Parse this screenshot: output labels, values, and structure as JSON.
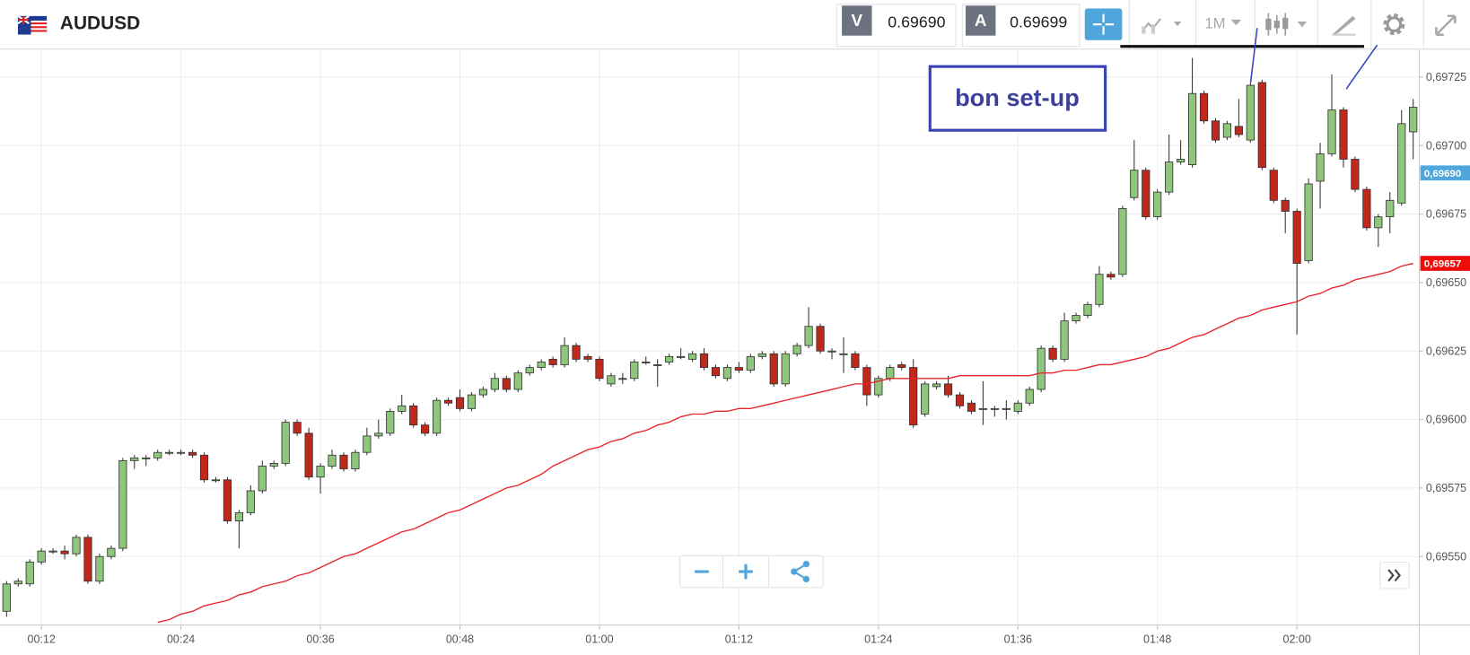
{
  "header": {
    "symbol": "AUDUSD",
    "bid_label": "V",
    "bid": "0.69690",
    "ask_label": "A",
    "ask": "0.69699",
    "timeframe": "1M"
  },
  "chart_data": {
    "type": "candlestick",
    "annotation": "bon set-up",
    "categories": [
      "00:09",
      "00:10",
      "00:11",
      "00:12",
      "00:13",
      "00:14",
      "00:15",
      "00:16",
      "00:17",
      "00:18",
      "00:19",
      "00:20",
      "00:21",
      "00:22",
      "00:23",
      "00:24",
      "00:25",
      "00:26",
      "00:27",
      "00:28",
      "00:29",
      "00:30",
      "00:31",
      "00:32",
      "00:33",
      "00:34",
      "00:35",
      "00:36",
      "00:37",
      "00:38",
      "00:39",
      "00:40",
      "00:41",
      "00:42",
      "00:43",
      "00:44",
      "00:45",
      "00:46",
      "00:47",
      "00:48",
      "00:49",
      "00:50",
      "00:51",
      "00:52",
      "00:53",
      "00:54",
      "00:55",
      "00:56",
      "00:57",
      "00:58",
      "00:59",
      "01:00",
      "01:01",
      "01:02",
      "01:03",
      "01:04",
      "01:05",
      "01:06",
      "01:07",
      "01:08",
      "01:09",
      "01:10",
      "01:11",
      "01:12",
      "01:13",
      "01:14",
      "01:15",
      "01:16",
      "01:17",
      "01:18",
      "01:19",
      "01:20",
      "01:21",
      "01:22",
      "01:23",
      "01:24",
      "01:25",
      "01:26",
      "01:27",
      "01:28",
      "01:29",
      "01:30",
      "01:31",
      "01:32",
      "01:33",
      "01:34",
      "01:35",
      "01:36",
      "01:37",
      "01:38",
      "01:39",
      "01:40",
      "01:41",
      "01:42",
      "01:43",
      "01:44",
      "01:45",
      "01:46",
      "01:47",
      "01:48",
      "01:49",
      "01:50",
      "01:51",
      "01:52",
      "01:53",
      "01:54",
      "01:55",
      "01:56",
      "01:57",
      "01:58",
      "01:59",
      "02:00",
      "02:01",
      "02:02",
      "02:03",
      "02:04",
      "02:05",
      "02:06",
      "02:07",
      "02:08",
      "02:09",
      "02:10"
    ],
    "open": [
      0.6953,
      0.6954,
      0.6954,
      0.69548,
      0.69552,
      0.69552,
      0.69551,
      0.69557,
      0.69541,
      0.6955,
      0.69553,
      0.69585,
      0.69586,
      0.69586,
      0.69588,
      0.69588,
      0.69588,
      0.69587,
      0.69578,
      0.69578,
      0.69563,
      0.69566,
      0.69574,
      0.69583,
      0.69584,
      0.69599,
      0.69595,
      0.69579,
      0.69583,
      0.69587,
      0.69582,
      0.69588,
      0.69594,
      0.69595,
      0.69603,
      0.69605,
      0.69598,
      0.69595,
      0.69607,
      0.69608,
      0.69604,
      0.69609,
      0.69611,
      0.69615,
      0.69611,
      0.69617,
      0.69619,
      0.69622,
      0.6962,
      0.69627,
      0.69623,
      0.69622,
      0.69613,
      0.69615,
      0.69615,
      0.69621,
      0.6962,
      0.69621,
      0.69623,
      0.69622,
      0.69624,
      0.69619,
      0.69615,
      0.69619,
      0.69618,
      0.69623,
      0.69624,
      0.69613,
      0.69624,
      0.69627,
      0.69634,
      0.69625,
      0.69624,
      0.69624,
      0.69619,
      0.69609,
      0.69615,
      0.6962,
      0.69619,
      0.69602,
      0.69612,
      0.69613,
      0.69609,
      0.69606,
      0.69604,
      0.69604,
      0.69604,
      0.69603,
      0.69606,
      0.69611,
      0.69626,
      0.69622,
      0.69636,
      0.69638,
      0.69642,
      0.69653,
      0.69653,
      0.69681,
      0.69691,
      0.69674,
      0.69683,
      0.69694,
      0.69693,
      0.69719,
      0.69709,
      0.69703,
      0.69707,
      0.69702,
      0.69723,
      0.69691,
      0.6968,
      0.69676,
      0.69658,
      0.69687,
      0.69697,
      0.69713,
      0.69695,
      0.69684,
      0.6967,
      0.69674,
      0.69679,
      0.69705
    ],
    "high": [
      0.69541,
      0.69542,
      0.69549,
      0.69553,
      0.69553,
      0.69554,
      0.69558,
      0.69558,
      0.69551,
      0.69554,
      0.69586,
      0.69587,
      0.69587,
      0.69589,
      0.69589,
      0.69589,
      0.69589,
      0.69588,
      0.69579,
      0.69579,
      0.69567,
      0.69576,
      0.69585,
      0.69585,
      0.696,
      0.696,
      0.69597,
      0.69584,
      0.69589,
      0.69588,
      0.69589,
      0.69597,
      0.696,
      0.69604,
      0.69609,
      0.69606,
      0.69599,
      0.69608,
      0.69608,
      0.69611,
      0.6961,
      0.69612,
      0.69617,
      0.69616,
      0.69618,
      0.6962,
      0.69622,
      0.69623,
      0.6963,
      0.69628,
      0.69624,
      0.69623,
      0.69617,
      0.69617,
      0.69622,
      0.69623,
      0.69622,
      0.69624,
      0.69626,
      0.69625,
      0.69626,
      0.6962,
      0.6962,
      0.69621,
      0.69624,
      0.69625,
      0.69625,
      0.69625,
      0.69628,
      0.69641,
      0.69635,
      0.69626,
      0.6963,
      0.69625,
      0.6962,
      0.69616,
      0.6962,
      0.69621,
      0.69622,
      0.69614,
      0.69614,
      0.69616,
      0.6961,
      0.69607,
      0.69614,
      0.69605,
      0.69607,
      0.69607,
      0.69612,
      0.69627,
      0.69627,
      0.69639,
      0.69639,
      0.69643,
      0.69656,
      0.69654,
      0.69678,
      0.69702,
      0.69692,
      0.69684,
      0.69704,
      0.69702,
      0.69732,
      0.6972,
      0.6971,
      0.69709,
      0.69717,
      0.69723,
      0.69724,
      0.69692,
      0.69681,
      0.69677,
      0.69688,
      0.69701,
      0.69726,
      0.69714,
      0.69696,
      0.69685,
      0.69675,
      0.69683,
      0.69713,
      0.69717
    ],
    "low": [
      0.69528,
      0.69539,
      0.69539,
      0.69547,
      0.69551,
      0.69549,
      0.6955,
      0.6954,
      0.6954,
      0.69549,
      0.69552,
      0.69582,
      0.69583,
      0.69585,
      0.69587,
      0.69587,
      0.69586,
      0.69577,
      0.69577,
      0.69562,
      0.69553,
      0.69565,
      0.69573,
      0.69582,
      0.69583,
      0.69594,
      0.69578,
      0.69573,
      0.69582,
      0.69581,
      0.69581,
      0.69587,
      0.69593,
      0.69594,
      0.69602,
      0.69597,
      0.69594,
      0.69594,
      0.69605,
      0.69603,
      0.69603,
      0.69608,
      0.6961,
      0.6961,
      0.6961,
      0.69616,
      0.69618,
      0.69619,
      0.69619,
      0.69621,
      0.69621,
      0.69614,
      0.69612,
      0.69613,
      0.69614,
      0.6962,
      0.69612,
      0.6962,
      0.69622,
      0.69621,
      0.69618,
      0.69615,
      0.69614,
      0.69617,
      0.69617,
      0.69622,
      0.69612,
      0.69612,
      0.69623,
      0.69626,
      0.69624,
      0.69622,
      0.69617,
      0.69618,
      0.69605,
      0.69608,
      0.69614,
      0.69618,
      0.69597,
      0.69601,
      0.69611,
      0.69608,
      0.69604,
      0.69602,
      0.69598,
      0.69601,
      0.696,
      0.69602,
      0.69605,
      0.6961,
      0.69621,
      0.69621,
      0.69635,
      0.69637,
      0.69641,
      0.69651,
      0.69652,
      0.6968,
      0.69673,
      0.69673,
      0.69682,
      0.69693,
      0.69692,
      0.69708,
      0.69701,
      0.69702,
      0.69703,
      0.69701,
      0.69691,
      0.69679,
      0.69668,
      0.69631,
      0.69657,
      0.69677,
      0.69696,
      0.69692,
      0.69683,
      0.69669,
      0.69663,
      0.69668,
      0.69678,
      0.69695
    ],
    "close": [
      0.6954,
      0.69541,
      0.69548,
      0.69552,
      0.69552,
      0.69551,
      0.69557,
      0.69541,
      0.6955,
      0.69553,
      0.69585,
      0.69586,
      0.69586,
      0.69588,
      0.69588,
      0.69588,
      0.69587,
      0.69578,
      0.69578,
      0.69563,
      0.69566,
      0.69574,
      0.69583,
      0.69584,
      0.69599,
      0.69595,
      0.69579,
      0.69583,
      0.69587,
      0.69582,
      0.69588,
      0.69594,
      0.69595,
      0.69603,
      0.69605,
      0.69598,
      0.69595,
      0.69607,
      0.69606,
      0.69604,
      0.69609,
      0.69611,
      0.69615,
      0.69611,
      0.69617,
      0.69619,
      0.69621,
      0.6962,
      0.69627,
      0.69622,
      0.69622,
      0.69615,
      0.69616,
      0.69615,
      0.69621,
      0.69621,
      0.6962,
      0.69623,
      0.69623,
      0.69624,
      0.69619,
      0.69616,
      0.69619,
      0.69618,
      0.69623,
      0.69624,
      0.69613,
      0.69624,
      0.69627,
      0.69634,
      0.69625,
      0.69625,
      0.69624,
      0.69619,
      0.69609,
      0.69615,
      0.69619,
      0.69619,
      0.69598,
      0.69613,
      0.69613,
      0.69609,
      0.69605,
      0.69603,
      0.69604,
      0.69604,
      0.69604,
      0.69606,
      0.69611,
      0.69626,
      0.69622,
      0.69636,
      0.69638,
      0.69642,
      0.69653,
      0.69652,
      0.69677,
      0.69691,
      0.69674,
      0.69683,
      0.69694,
      0.69695,
      0.69719,
      0.69709,
      0.69702,
      0.69708,
      0.69704,
      0.69722,
      0.69692,
      0.6968,
      0.69676,
      0.69657,
      0.69686,
      0.69697,
      0.69713,
      0.69695,
      0.69684,
      0.6967,
      0.69674,
      0.6968,
      0.69708,
      0.69714
    ],
    "up_color": "#8ec67c",
    "down_color": "#c0281b",
    "lines": [
      {
        "color": "#e8242b",
        "values": [
          null,
          null,
          null,
          null,
          null,
          null,
          null,
          null,
          null,
          null,
          null,
          null,
          null,
          0.69526,
          0.69527,
          0.69529,
          0.6953,
          0.69532,
          0.69533,
          0.69534,
          0.69536,
          0.69537,
          0.69539,
          0.6954,
          0.69541,
          0.69543,
          0.69544,
          0.69546,
          0.69548,
          0.6955,
          0.69551,
          0.69553,
          0.69555,
          0.69557,
          0.69559,
          0.6956,
          0.69562,
          0.69564,
          0.69566,
          0.69567,
          0.69569,
          0.69571,
          0.69573,
          0.69575,
          0.69576,
          0.69578,
          0.6958,
          0.69583,
          0.69585,
          0.69587,
          0.69589,
          0.6959,
          0.69592,
          0.69593,
          0.69595,
          0.69596,
          0.69598,
          0.69599,
          0.69601,
          0.69602,
          0.69602,
          0.69603,
          0.69603,
          0.69604,
          0.69604,
          0.69605,
          0.69606,
          0.69607,
          0.69608,
          0.69609,
          0.6961,
          0.69611,
          0.69612,
          0.69613,
          0.69613,
          0.69614,
          0.69615,
          0.69615,
          0.69615,
          0.69615,
          0.69615,
          0.69615,
          0.69616,
          0.69616,
          0.69616,
          0.69616,
          0.69616,
          0.69616,
          0.69616,
          0.69617,
          0.69617,
          0.69618,
          0.69618,
          0.69619,
          0.6962,
          0.6962,
          0.69621,
          0.69622,
          0.69623,
          0.69625,
          0.69626,
          0.69628,
          0.6963,
          0.69631,
          0.69633,
          0.69635,
          0.69637,
          0.69638,
          0.6964,
          0.69641,
          0.69642,
          0.69643,
          0.69645,
          0.69646,
          0.69648,
          0.69649,
          0.69651,
          0.69652,
          0.69653,
          0.69654,
          0.69656,
          0.69657
        ]
      }
    ],
    "ylim": [
      0.69525,
      0.69735
    ],
    "yticks": [
      {
        "value": 0.6955,
        "label": "0,69550"
      },
      {
        "value": 0.69575,
        "label": "0,69575"
      },
      {
        "value": 0.696,
        "label": "0,69600"
      },
      {
        "value": 0.69625,
        "label": "0,69625"
      },
      {
        "value": 0.6965,
        "label": "0,69650"
      },
      {
        "value": 0.69675,
        "label": "0,69675"
      },
      {
        "value": 0.697,
        "label": "0,69700"
      },
      {
        "value": 0.69725,
        "label": "0,69725"
      }
    ],
    "xticks": [
      "00:12",
      "00:24",
      "00:36",
      "00:48",
      "01:00",
      "01:12",
      "01:24",
      "01:36",
      "01:48",
      "02:00"
    ],
    "price_markers": [
      {
        "value": 0.6969,
        "label": "0,69690",
        "color": "#4ea6dc"
      },
      {
        "value": 0.69657,
        "label": "0,69657",
        "color": "#f10c0c"
      }
    ],
    "grid": true
  }
}
